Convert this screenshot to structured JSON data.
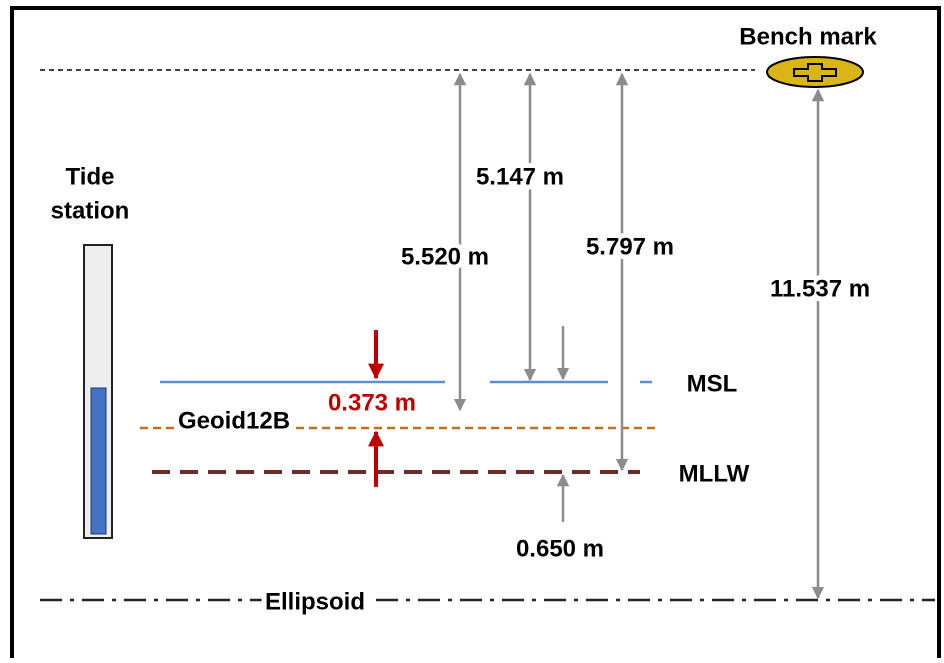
{
  "labels": {
    "bench_mark": "Bench mark",
    "tide_station": [
      "Tide",
      "station"
    ],
    "msl": "MSL",
    "geoid": "Geoid12B",
    "mllw": "MLLW",
    "ellipsoid": "Ellipsoid"
  },
  "measurements": {
    "bm_to_mllw_gauge": "5.520 m",
    "bm_to_msl": "5.147 m",
    "bm_to_mllw": "5.797 m",
    "bm_to_ellipsoid": "11.537 m",
    "msl_to_geoid": "0.373 m",
    "msl_to_mllw": "0.650 m"
  }
}
